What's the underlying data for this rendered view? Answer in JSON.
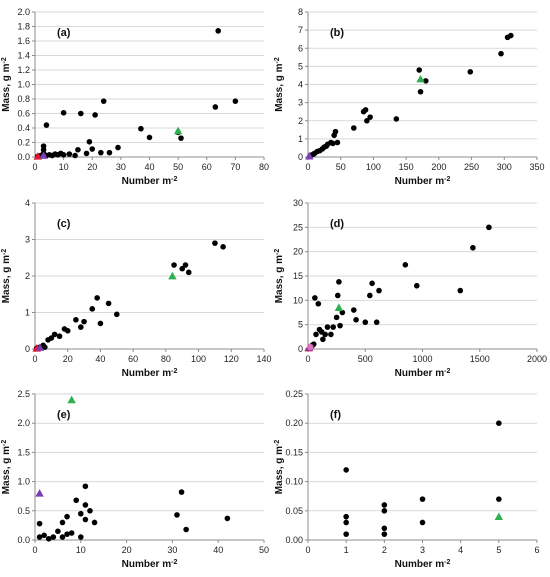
{
  "colors": {
    "black": "#000000",
    "green": "#2eb04e",
    "red": "#e8142c",
    "purple": "#7b3fb5",
    "pink": "#e070c0",
    "grid": "#d9d9d9",
    "axis": "#8c8c8c"
  },
  "chart_data": [
    {
      "panel": "(a)",
      "type": "scatter",
      "xlabel": "Number m⁻²",
      "ylabel": "Mass, g m⁻²",
      "xlim": [
        0,
        80
      ],
      "ylim": [
        0,
        2
      ],
      "xticks": [
        "0",
        "10",
        "20",
        "30",
        "40",
        "50",
        "60",
        "70",
        "80"
      ],
      "yticks": [
        "0.0",
        "0.2",
        "0.4",
        "0.6",
        "0.8",
        "1.0",
        "1.2",
        "1.4",
        "1.6",
        "1.8",
        "2.0"
      ],
      "grid": "horizontal",
      "points": [
        [
          1,
          0.01
        ],
        [
          2,
          0.02
        ],
        [
          3,
          0.05
        ],
        [
          3,
          0.1
        ],
        [
          3,
          0.15
        ],
        [
          4,
          0.02
        ],
        [
          4,
          0.44
        ],
        [
          5,
          0.03
        ],
        [
          6,
          0.02
        ],
        [
          7,
          0.04
        ],
        [
          8,
          0.03
        ],
        [
          9,
          0.05
        ],
        [
          10,
          0.61
        ],
        [
          10,
          0.03
        ],
        [
          12,
          0.04
        ],
        [
          14,
          0.02
        ],
        [
          15,
          0.1
        ],
        [
          16,
          0.6
        ],
        [
          18,
          0.05
        ],
        [
          19,
          0.21
        ],
        [
          20,
          0.11
        ],
        [
          21,
          0.58
        ],
        [
          23,
          0.06
        ],
        [
          24,
          0.77
        ],
        [
          26,
          0.06
        ],
        [
          29,
          0.13
        ],
        [
          37,
          0.39
        ],
        [
          40,
          0.27
        ],
        [
          50,
          0.34
        ],
        [
          51,
          0.26
        ],
        [
          63,
          0.69
        ],
        [
          64,
          1.74
        ],
        [
          70,
          0.77
        ]
      ],
      "markers": [
        {
          "color": "green",
          "shape": "triangle",
          "x": 50,
          "y": 0.36
        },
        {
          "color": "red",
          "shape": "triangle",
          "x": 1,
          "y": 0.01
        },
        {
          "color": "purple",
          "shape": "triangle",
          "x": 3,
          "y": 0.02
        }
      ]
    },
    {
      "panel": "(b)",
      "type": "scatter",
      "xlabel": "Number m⁻²",
      "ylabel": "Mass, g m⁻²",
      "xlim": [
        0,
        350
      ],
      "ylim": [
        0,
        8
      ],
      "xticks": [
        "0",
        "50",
        "100",
        "150",
        "200",
        "250",
        "300",
        "350"
      ],
      "yticks": [
        "0",
        "1",
        "2",
        "3",
        "4",
        "5",
        "6",
        "7",
        "8"
      ],
      "grid": "horizontal",
      "points": [
        [
          3,
          0.05
        ],
        [
          5,
          0.1
        ],
        [
          8,
          0.15
        ],
        [
          10,
          0.2
        ],
        [
          14,
          0.3
        ],
        [
          18,
          0.35
        ],
        [
          22,
          0.45
        ],
        [
          25,
          0.55
        ],
        [
          28,
          0.6
        ],
        [
          30,
          0.7
        ],
        [
          35,
          0.8
        ],
        [
          38,
          0.75
        ],
        [
          40,
          1.2
        ],
        [
          42,
          1.4
        ],
        [
          45,
          0.8
        ],
        [
          70,
          1.6
        ],
        [
          85,
          2.5
        ],
        [
          88,
          2.6
        ],
        [
          90,
          2.0
        ],
        [
          95,
          2.2
        ],
        [
          135,
          2.1
        ],
        [
          170,
          4.8
        ],
        [
          172,
          3.6
        ],
        [
          180,
          4.2
        ],
        [
          248,
          4.7
        ],
        [
          295,
          5.7
        ],
        [
          305,
          6.6
        ],
        [
          310,
          6.7
        ]
      ],
      "markers": [
        {
          "color": "green",
          "shape": "triangle",
          "x": 172,
          "y": 4.3
        },
        {
          "color": "purple",
          "shape": "triangle",
          "x": 2,
          "y": 0.05
        }
      ]
    },
    {
      "panel": "(c)",
      "type": "scatter",
      "xlabel": "Number m⁻²",
      "ylabel": "Mass, g m⁻²",
      "xlim": [
        0,
        140
      ],
      "ylim": [
        0,
        4
      ],
      "xticks": [
        "0",
        "20",
        "40",
        "60",
        "80",
        "100",
        "120",
        "140"
      ],
      "yticks": [
        "0",
        "1",
        "2",
        "3",
        "4"
      ],
      "grid": "horizontal",
      "points": [
        [
          1,
          0.02
        ],
        [
          2,
          0.03
        ],
        [
          3,
          0.05
        ],
        [
          5,
          0.1
        ],
        [
          6,
          0.05
        ],
        [
          8,
          0.25
        ],
        [
          10,
          0.3
        ],
        [
          12,
          0.4
        ],
        [
          15,
          0.35
        ],
        [
          18,
          0.55
        ],
        [
          20,
          0.5
        ],
        [
          25,
          0.8
        ],
        [
          28,
          0.6
        ],
        [
          30,
          0.75
        ],
        [
          35,
          1.1
        ],
        [
          38,
          1.4
        ],
        [
          40,
          0.7
        ],
        [
          45,
          1.25
        ],
        [
          50,
          0.95
        ],
        [
          85,
          2.3
        ],
        [
          90,
          2.2
        ],
        [
          92,
          2.3
        ],
        [
          94,
          2.1
        ],
        [
          110,
          2.9
        ],
        [
          115,
          2.8
        ]
      ],
      "markers": [
        {
          "color": "green",
          "shape": "triangle",
          "x": 84,
          "y": 2.0
        },
        {
          "color": "red",
          "shape": "triangle",
          "x": 1,
          "y": 0.02
        },
        {
          "color": "purple",
          "shape": "triangle",
          "x": 3,
          "y": 0.04
        }
      ]
    },
    {
      "panel": "(d)",
      "type": "scatter",
      "xlabel": "Number m⁻²",
      "ylabel": "Mass, g m⁻²",
      "xlim": [
        0,
        2000
      ],
      "ylim": [
        0,
        30
      ],
      "xticks": [
        "0",
        "500",
        "1000",
        "1500",
        "2000"
      ],
      "yticks": [
        "0",
        "5",
        "10",
        "15",
        "20",
        "25",
        "30"
      ],
      "grid": "horizontal",
      "points": [
        [
          30,
          0.5
        ],
        [
          40,
          0.8
        ],
        [
          50,
          1.0
        ],
        [
          60,
          10.5
        ],
        [
          70,
          3.0
        ],
        [
          90,
          9.3
        ],
        [
          100,
          4.0
        ],
        [
          120,
          3.5
        ],
        [
          130,
          2.0
        ],
        [
          150,
          3.0
        ],
        [
          170,
          4.5
        ],
        [
          200,
          3.0
        ],
        [
          220,
          4.5
        ],
        [
          250,
          6.5
        ],
        [
          260,
          11.0
        ],
        [
          270,
          13.8
        ],
        [
          280,
          4.8
        ],
        [
          300,
          7.5
        ],
        [
          400,
          8.0
        ],
        [
          420,
          6.0
        ],
        [
          500,
          5.5
        ],
        [
          540,
          11.0
        ],
        [
          560,
          13.5
        ],
        [
          600,
          5.5
        ],
        [
          620,
          12.0
        ],
        [
          850,
          17.3
        ],
        [
          950,
          13.0
        ],
        [
          1330,
          12.0
        ],
        [
          1440,
          20.8
        ],
        [
          1580,
          25.0
        ]
      ],
      "markers": [
        {
          "color": "green",
          "shape": "triangle",
          "x": 270,
          "y": 8.5
        },
        {
          "color": "red",
          "shape": "triangle",
          "x": 5,
          "y": 0.2
        },
        {
          "color": "purple",
          "shape": "triangle",
          "x": 10,
          "y": 0.3
        },
        {
          "color": "pink",
          "shape": "circle",
          "x": 20,
          "y": 0.4
        }
      ]
    },
    {
      "panel": "(e)",
      "type": "scatter",
      "xlabel": "Number m⁻²",
      "ylabel": "Mass, g m⁻²",
      "xlim": [
        0,
        50
      ],
      "ylim": [
        0,
        2.5
      ],
      "xticks": [
        "0",
        "10",
        "20",
        "30",
        "40",
        "50"
      ],
      "yticks": [
        "0.0",
        "0.5",
        "1.0",
        "1.5",
        "2.0",
        "2.5"
      ],
      "grid": "horizontal",
      "points": [
        [
          1,
          0.28
        ],
        [
          1,
          0.05
        ],
        [
          2,
          0.08
        ],
        [
          3,
          0.02
        ],
        [
          4,
          0.05
        ],
        [
          5,
          0.15
        ],
        [
          6,
          0.3
        ],
        [
          6,
          0.05
        ],
        [
          7,
          0.4
        ],
        [
          7,
          0.1
        ],
        [
          8,
          0.12
        ],
        [
          9,
          0.68
        ],
        [
          10,
          0.05
        ],
        [
          10,
          0.45
        ],
        [
          11,
          0.6
        ],
        [
          11,
          0.35
        ],
        [
          11,
          0.92
        ],
        [
          12,
          0.5
        ],
        [
          13,
          0.3
        ],
        [
          31,
          0.43
        ],
        [
          32,
          0.82
        ],
        [
          33,
          0.18
        ],
        [
          42,
          0.37
        ]
      ],
      "markers": [
        {
          "color": "green",
          "shape": "triangle",
          "x": 8,
          "y": 2.4
        },
        {
          "color": "purple",
          "shape": "triangle",
          "x": 1,
          "y": 0.8
        }
      ]
    },
    {
      "panel": "(f)",
      "type": "scatter",
      "xlabel": "Number m⁻²",
      "ylabel": "Mass, g m⁻²",
      "xlim": [
        0,
        6
      ],
      "ylim": [
        0,
        0.25
      ],
      "xticks": [
        "0",
        "1",
        "2",
        "3",
        "4",
        "5",
        "6"
      ],
      "yticks": [
        "0.00",
        "0.05",
        "0.10",
        "0.15",
        "0.20",
        "0.25"
      ],
      "grid": "horizontal",
      "points": [
        [
          1,
          0.12
        ],
        [
          1,
          0.04
        ],
        [
          1,
          0.03
        ],
        [
          1,
          0.01
        ],
        [
          2,
          0.06
        ],
        [
          2,
          0.05
        ],
        [
          2,
          0.02
        ],
        [
          2,
          0.01
        ],
        [
          3,
          0.07
        ],
        [
          3,
          0.03
        ],
        [
          5,
          0.2
        ],
        [
          5,
          0.07
        ]
      ],
      "markers": [
        {
          "color": "green",
          "shape": "triangle",
          "x": 5,
          "y": 0.04
        }
      ]
    }
  ]
}
